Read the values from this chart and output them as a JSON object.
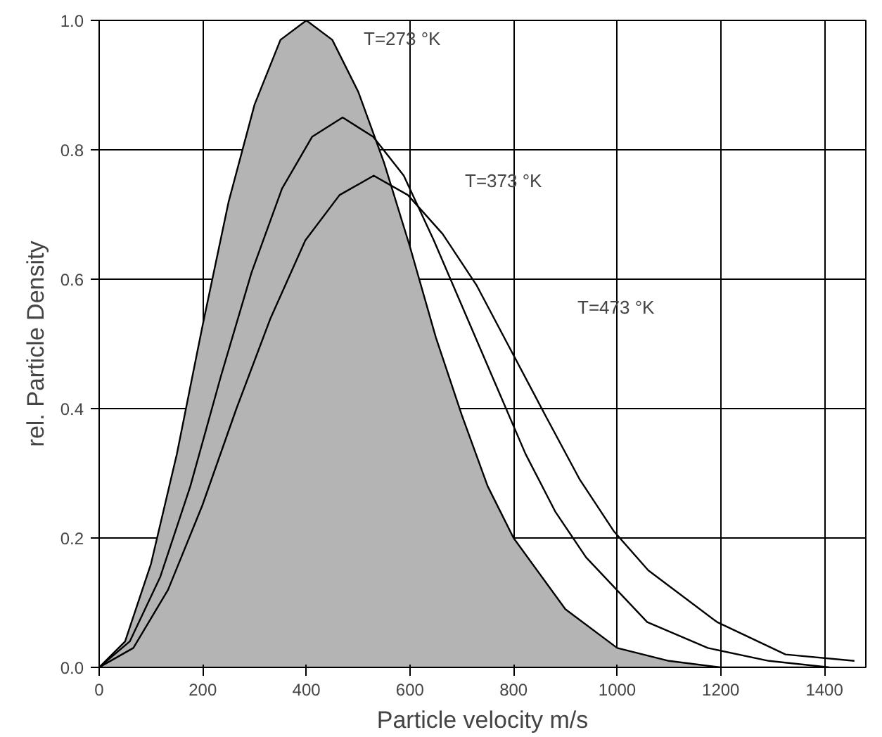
{
  "chart_data": {
    "type": "line",
    "xlabel": "Particle velocity m/s",
    "ylabel": "rel. Particle Density",
    "xlim": [
      0,
      1480
    ],
    "ylim": [
      0,
      1.0
    ],
    "xticks": [
      0,
      200,
      400,
      600,
      800,
      1000,
      1200,
      1400
    ],
    "yticks": [
      {
        "value": 0,
        "label": "0.0"
      },
      0.2,
      0.4,
      0.6,
      0.8,
      {
        "value": 1,
        "label": "1.0"
      }
    ],
    "grid": true,
    "series": [
      {
        "type": "area",
        "color": "#b4b4b4",
        "x": [
          0,
          50,
          100,
          150,
          200,
          250,
          300,
          350,
          400,
          450,
          500,
          550,
          600,
          650,
          700,
          750,
          800,
          900,
          1000,
          1100,
          1200,
          1400
        ],
        "values": [
          0,
          0.04,
          0.16,
          0.33,
          0.53,
          0.72,
          0.87,
          0.97,
          1.0,
          0.97,
          0.89,
          0.78,
          0.65,
          0.51,
          0.39,
          0.28,
          0.2,
          0.09,
          0.03,
          0.01,
          0.0,
          0.0
        ]
      },
      {
        "color": "#000000",
        "x": [
          0,
          59,
          118,
          176,
          235,
          294,
          353,
          411,
          470,
          529,
          588,
          646,
          705,
          764,
          823,
          881,
          940,
          1058,
          1175,
          1293,
          1410
        ],
        "values": [
          0,
          0.04,
          0.14,
          0.28,
          0.45,
          0.61,
          0.74,
          0.82,
          0.85,
          0.82,
          0.76,
          0.66,
          0.55,
          0.44,
          0.33,
          0.24,
          0.17,
          0.07,
          0.03,
          0.01,
          0.0
        ]
      },
      {
        "color": "#000000",
        "x": [
          0,
          66,
          133,
          199,
          265,
          331,
          398,
          464,
          530,
          596,
          663,
          729,
          795,
          861,
          928,
          994,
          1060,
          1193,
          1325,
          1458
        ],
        "values": [
          0,
          0.03,
          0.12,
          0.25,
          0.4,
          0.54,
          0.66,
          0.73,
          0.76,
          0.73,
          0.67,
          0.59,
          0.49,
          0.39,
          0.29,
          0.21,
          0.15,
          0.07,
          0.02,
          0.01
        ]
      }
    ],
    "annotations": [
      "T=273 °K",
      "T=373 °K",
      "T=473 °K"
    ]
  }
}
